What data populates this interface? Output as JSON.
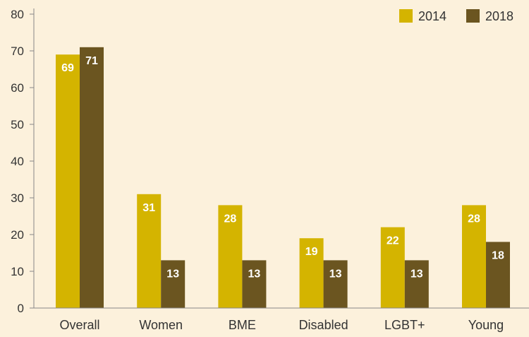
{
  "chart_data": {
    "type": "bar",
    "categories": [
      "Overall",
      "Women",
      "BME",
      "Disabled",
      "LGBT+",
      "Young"
    ],
    "series": [
      {
        "name": "2014",
        "values": [
          69,
          31,
          28,
          19,
          22,
          28
        ],
        "labels": [
          "69",
          "31",
          "28",
          "19",
          "22",
          "28"
        ],
        "color": "#d4b400"
      },
      {
        "name": "2018",
        "values": [
          71,
          13,
          13,
          13,
          13,
          18
        ],
        "labels": [
          "71",
          "13",
          "13",
          "13",
          "13",
          "18"
        ],
        "color": "#6b5520"
      }
    ],
    "ylim": [
      0,
      80
    ],
    "yticks": [
      "0",
      "10",
      "20",
      "30",
      "40",
      "50",
      "60",
      "70",
      "80"
    ],
    "grid": false,
    "legend_position": "top-right"
  },
  "colors": {
    "background": "#fcf1dc",
    "axis": "#888888",
    "text": "#333333"
  }
}
